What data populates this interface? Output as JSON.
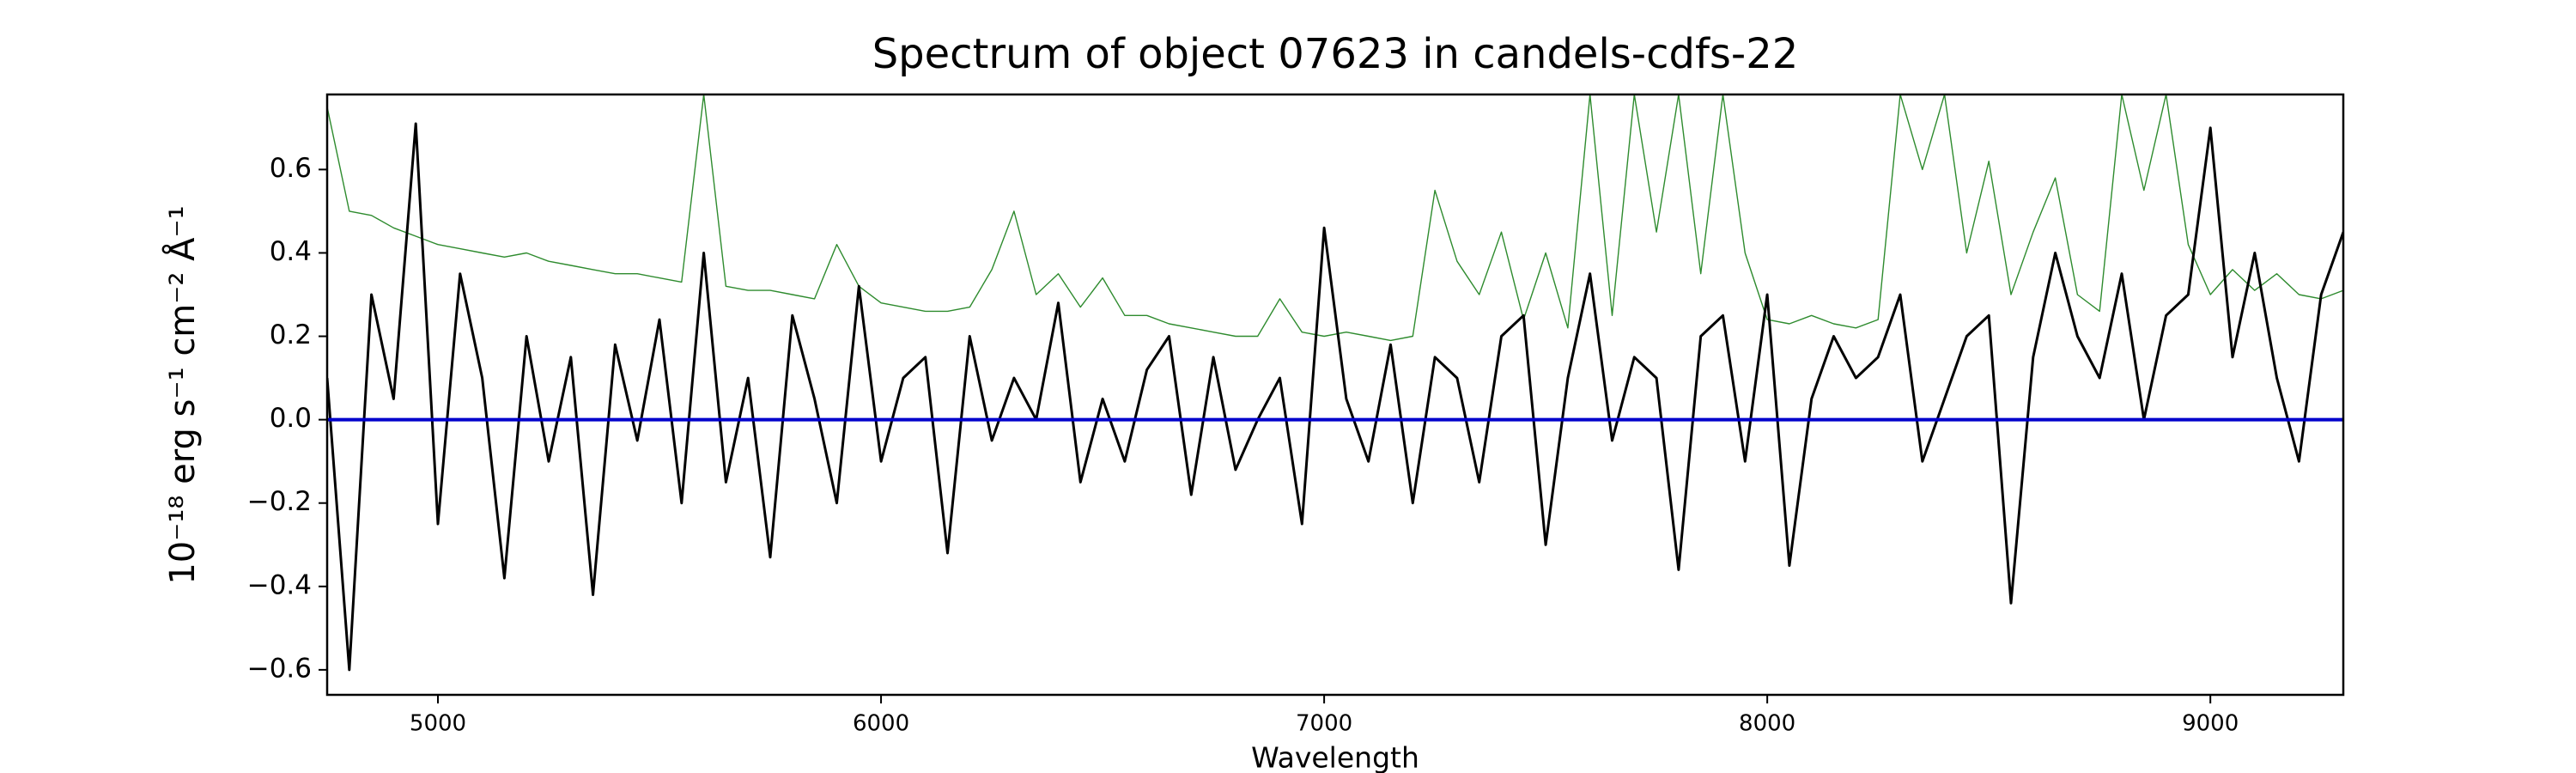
{
  "chart_data": {
    "type": "line",
    "title": "Spectrum of object 07623 in candels-cdfs-22",
    "xlabel": "Wavelength",
    "ylabel": "10⁻¹⁸ erg s⁻¹ cm⁻² Å⁻¹",
    "x": [
      4750,
      4800,
      4850,
      4900,
      4950,
      5000,
      5050,
      5100,
      5150,
      5200,
      5250,
      5300,
      5350,
      5400,
      5450,
      5500,
      5550,
      5600,
      5650,
      5700,
      5750,
      5800,
      5850,
      5900,
      5950,
      6000,
      6050,
      6100,
      6150,
      6200,
      6250,
      6300,
      6350,
      6400,
      6450,
      6500,
      6550,
      6600,
      6650,
      6700,
      6750,
      6800,
      6850,
      6900,
      6950,
      7000,
      7050,
      7100,
      7150,
      7200,
      7250,
      7300,
      7350,
      7400,
      7450,
      7500,
      7550,
      7600,
      7650,
      7700,
      7750,
      7800,
      7850,
      7900,
      7950,
      8000,
      8050,
      8100,
      8150,
      8200,
      8250,
      8300,
      8350,
      8400,
      8450,
      8500,
      8550,
      8600,
      8650,
      8700,
      8750,
      8800,
      8850,
      8900,
      8950,
      9000,
      9050,
      9100,
      9150,
      9200,
      9250,
      9300
    ],
    "series": [
      {
        "color": "#000000",
        "values": [
          0.1,
          -0.6,
          0.3,
          0.05,
          0.71,
          -0.25,
          0.35,
          0.1,
          -0.38,
          0.2,
          -0.1,
          0.15,
          -0.42,
          0.18,
          -0.05,
          0.24,
          -0.2,
          0.4,
          -0.15,
          0.1,
          -0.33,
          0.25,
          0.05,
          -0.2,
          0.32,
          -0.1,
          0.1,
          0.15,
          -0.32,
          0.2,
          -0.05,
          0.1,
          0.0,
          0.28,
          -0.15,
          0.05,
          -0.1,
          0.12,
          0.2,
          -0.18,
          0.15,
          -0.12,
          0.0,
          0.1,
          -0.25,
          0.46,
          0.05,
          -0.1,
          0.18,
          -0.2,
          0.15,
          0.1,
          -0.15,
          0.2,
          0.25,
          -0.3,
          0.1,
          0.35,
          -0.05,
          0.15,
          0.1,
          -0.36,
          0.2,
          0.25,
          -0.1,
          0.3,
          -0.35,
          0.05,
          0.2,
          0.1,
          0.15,
          0.3,
          -0.1,
          0.05,
          0.2,
          0.25,
          -0.44,
          0.15,
          0.4,
          0.2,
          0.1,
          0.35,
          0.0,
          0.25,
          0.3,
          0.7,
          0.15,
          0.4,
          0.1,
          -0.1,
          0.3,
          0.45
        ]
      },
      {
        "color": "#2e8b2e",
        "values": [
          0.75,
          0.5,
          0.49,
          0.46,
          0.44,
          0.42,
          0.41,
          0.4,
          0.39,
          0.4,
          0.38,
          0.37,
          0.36,
          0.35,
          0.35,
          0.34,
          0.33,
          0.78,
          0.32,
          0.31,
          0.31,
          0.3,
          0.29,
          0.42,
          0.32,
          0.28,
          0.27,
          0.26,
          0.26,
          0.27,
          0.36,
          0.5,
          0.3,
          0.35,
          0.27,
          0.34,
          0.25,
          0.25,
          0.23,
          0.22,
          0.21,
          0.2,
          0.2,
          0.29,
          0.21,
          0.2,
          0.21,
          0.2,
          0.19,
          0.2,
          0.55,
          0.38,
          0.3,
          0.45,
          0.24,
          0.4,
          0.22,
          0.78,
          0.25,
          0.78,
          0.45,
          0.78,
          0.35,
          0.78,
          0.4,
          0.24,
          0.23,
          0.25,
          0.23,
          0.22,
          0.24,
          0.78,
          0.6,
          0.78,
          0.4,
          0.62,
          0.3,
          0.45,
          0.58,
          0.3,
          0.26,
          0.78,
          0.55,
          0.78,
          0.42,
          0.3,
          0.36,
          0.31,
          0.35,
          0.3,
          0.29,
          0.31
        ]
      },
      {
        "color": "#0000cc",
        "values": [
          0,
          0,
          0,
          0,
          0,
          0,
          0,
          0,
          0,
          0,
          0,
          0,
          0,
          0,
          0,
          0,
          0,
          0,
          0,
          0,
          0,
          0,
          0,
          0,
          0,
          0,
          0,
          0,
          0,
          0,
          0,
          0,
          0,
          0,
          0,
          0,
          0,
          0,
          0,
          0,
          0,
          0,
          0,
          0,
          0,
          0,
          0,
          0,
          0,
          0,
          0,
          0,
          0,
          0,
          0,
          0,
          0,
          0,
          0,
          0,
          0,
          0,
          0,
          0,
          0,
          0,
          0,
          0,
          0,
          0,
          0,
          0,
          0,
          0,
          0,
          0,
          0,
          0,
          0,
          0,
          0,
          0,
          0,
          0,
          0,
          0,
          0,
          0,
          0,
          0,
          0,
          0
        ]
      }
    ],
    "xlim": [
      4750,
      9300
    ],
    "xticks": [
      5000,
      6000,
      7000,
      8000,
      9000
    ],
    "ylim": [
      -0.66,
      0.78
    ],
    "yticks": [
      {
        "value": -0.6,
        "label": "−0.6"
      },
      {
        "value": -0.4,
        "label": "−0.4"
      },
      {
        "value": -0.2,
        "label": "−0.2"
      },
      {
        "value": 0,
        "label": "0.0"
      },
      {
        "value": 0.2,
        "label": "0.2"
      },
      {
        "value": 0.4,
        "label": "0.4"
      },
      {
        "value": 0.6,
        "label": "0.6"
      }
    ],
    "grid": false
  }
}
